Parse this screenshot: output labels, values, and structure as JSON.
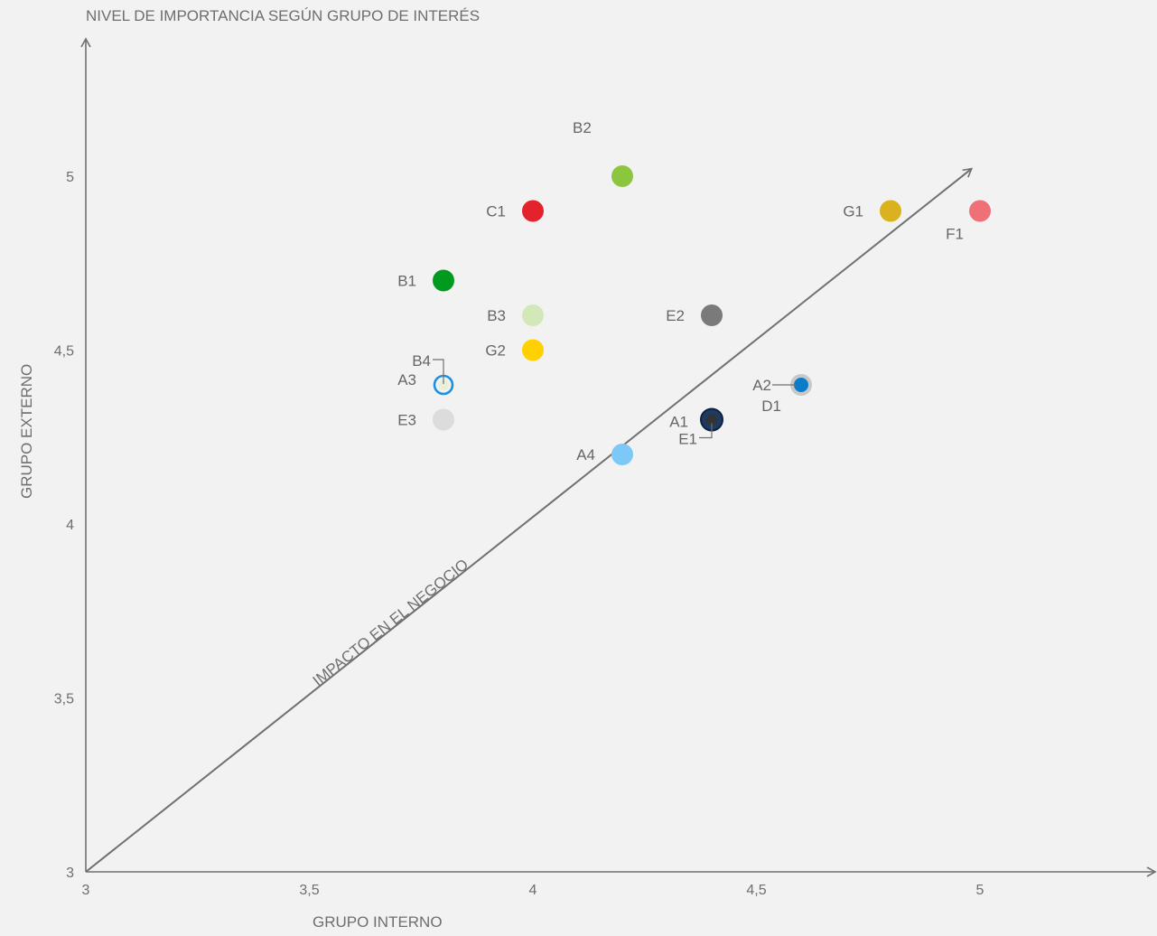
{
  "chart_data": {
    "type": "scatter",
    "title": "NIVEL DE IMPORTANCIA SEGÚN GRUPO DE INTERÉS",
    "xlabel": "GRUPO INTERNO",
    "ylabel": "GRUPO EXTERNO",
    "xlim": [
      3,
      5.4
    ],
    "ylim": [
      3,
      5.4
    ],
    "x_ticks": [
      3,
      3.5,
      4,
      4.5,
      5
    ],
    "x_tick_labels": [
      "3",
      "3,5",
      "4",
      "4,5",
      "5"
    ],
    "y_ticks": [
      3,
      3.5,
      4,
      4.5,
      5
    ],
    "y_tick_labels": [
      "3",
      "3,5",
      "4",
      "4,5",
      "5"
    ],
    "grid": false,
    "legend": "none",
    "diagonal": {
      "from": [
        3,
        3
      ],
      "to": [
        5,
        5.02
      ],
      "label": "IMPACTO EN EL NEGOCIO"
    },
    "points": [
      {
        "label": "B2",
        "x": 4.2,
        "y": 5.0,
        "color": "#8cc63f",
        "style": "filled",
        "label_pos": "above"
      },
      {
        "label": "C1",
        "x": 4.0,
        "y": 4.9,
        "color": "#e3222b",
        "style": "filled",
        "label_pos": "left"
      },
      {
        "label": "G1",
        "x": 4.8,
        "y": 4.9,
        "color": "#d9b21e",
        "style": "filled",
        "label_pos": "left"
      },
      {
        "label": "F1",
        "x": 5.0,
        "y": 4.9,
        "color": "#f07077",
        "style": "filled",
        "label_pos": "below-left"
      },
      {
        "label": "B1",
        "x": 3.8,
        "y": 4.7,
        "color": "#009a1e",
        "style": "filled",
        "label_pos": "left"
      },
      {
        "label": "B3",
        "x": 4.0,
        "y": 4.6,
        "color": "#d3e8b8",
        "style": "filled",
        "label_pos": "left"
      },
      {
        "label": "E2",
        "x": 4.4,
        "y": 4.6,
        "color": "#7a7a7a",
        "style": "filled",
        "label_pos": "left"
      },
      {
        "label": "G2",
        "x": 4.0,
        "y": 4.5,
        "color": "#ffd100",
        "style": "filled",
        "label_pos": "left"
      },
      {
        "label": "B4",
        "x": 3.8,
        "y": 4.4,
        "color": "#e8f0d8",
        "style": "small",
        "label_pos": "leader-up-left"
      },
      {
        "label": "A3",
        "x": 3.8,
        "y": 4.4,
        "color": "#1e90e0",
        "style": "ring",
        "label_pos": "left"
      },
      {
        "label": "E3",
        "x": 3.8,
        "y": 4.3,
        "color": "#dcdcdc",
        "style": "filled",
        "label_pos": "left"
      },
      {
        "label": "D1",
        "x": 4.6,
        "y": 4.4,
        "color": "#c8c8c8",
        "style": "filled",
        "label_pos": "below-left"
      },
      {
        "label": "A2",
        "x": 4.6,
        "y": 4.4,
        "color": "#0a7cc8",
        "style": "small",
        "label_pos": "leader-left"
      },
      {
        "label": "A1",
        "x": 4.4,
        "y": 4.3,
        "color": "#1e3a5f",
        "style": "filled",
        "label_pos": "left"
      },
      {
        "label": "E1",
        "x": 4.4,
        "y": 4.3,
        "color": "#333333",
        "style": "small",
        "label_pos": "leader-down-left"
      },
      {
        "label": "A4",
        "x": 4.2,
        "y": 4.2,
        "color": "#7ec8f8",
        "style": "filled",
        "label_pos": "left"
      }
    ]
  }
}
